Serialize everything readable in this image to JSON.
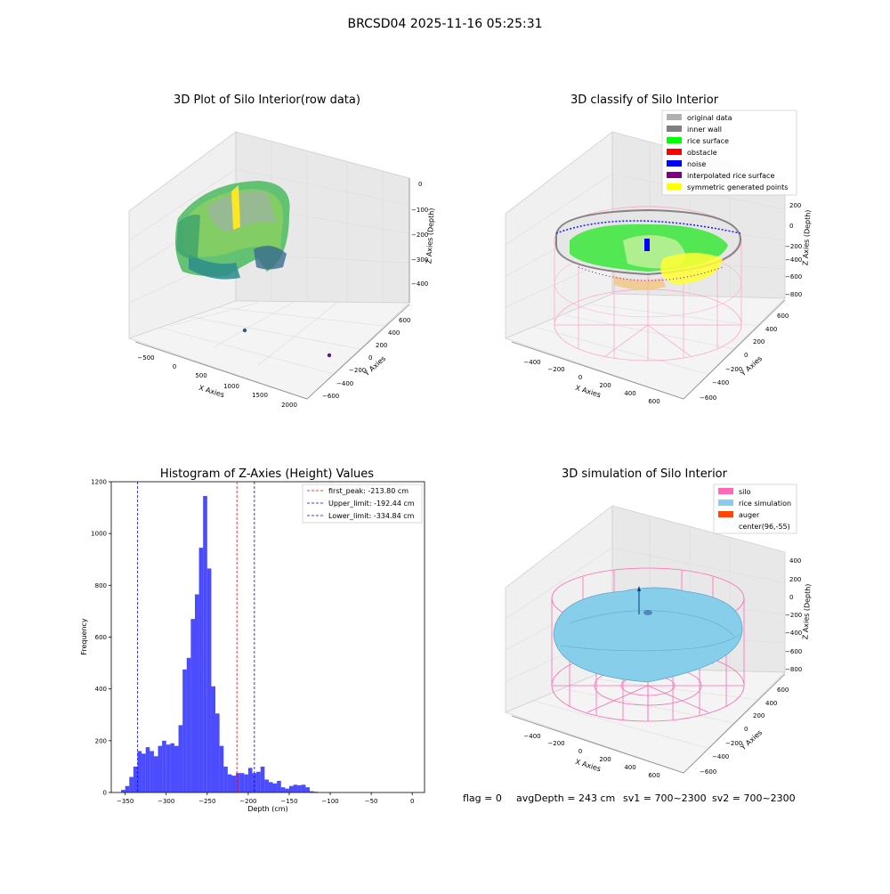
{
  "figure_title": "BRCSD04 2025-11-16 05:25:31",
  "panels": {
    "raw": {
      "title": "3D Plot of Silo Interior(row data)",
      "xlabel": "X Axies",
      "ylabel": "Y Axies",
      "zlabel": "Z Axies (Depth)",
      "xticks": [
        "−500",
        "0",
        "500",
        "1000",
        "1500",
        "2000"
      ],
      "yticks": [
        "600",
        "400",
        "200",
        "0",
        "−200",
        "−400",
        "−600"
      ],
      "zticks": [
        "0",
        "−100",
        "−200",
        "−300",
        "−400"
      ]
    },
    "classify": {
      "title": "3D classify of Silo Interior",
      "xlabel": "X Axies",
      "ylabel": "Y Axies",
      "zlabel": "Z Axies (Depth)",
      "xticks": [
        "−400",
        "−200",
        "0",
        "200",
        "400",
        "600"
      ],
      "yticks": [
        "600",
        "400",
        "200",
        "0",
        "−200",
        "−400",
        "−600"
      ],
      "zticks": [
        "200",
        "0",
        "−200",
        "−400",
        "−600",
        "−800"
      ],
      "legend": [
        {
          "label": "original data",
          "color": "#b0b0b0"
        },
        {
          "label": "inner wall",
          "color": "#808080"
        },
        {
          "label": "rice surface",
          "color": "#00ff00"
        },
        {
          "label": "obstacle",
          "color": "#ff0000"
        },
        {
          "label": "noise",
          "color": "#0000ff"
        },
        {
          "label": "interpolated rice surface",
          "color": "#800080"
        },
        {
          "label": "symmetric generated points",
          "color": "#ffff00"
        }
      ]
    },
    "simulation": {
      "title": "3D simulation of Silo Interior",
      "xlabel": "X Axies",
      "ylabel": "Y Axies",
      "zlabel": "Z Axies (Depth)",
      "xticks": [
        "−400",
        "−200",
        "0",
        "200",
        "400",
        "600"
      ],
      "yticks": [
        "600",
        "400",
        "200",
        "0",
        "−200",
        "−400",
        "−600"
      ],
      "zticks": [
        "400",
        "200",
        "0",
        "−200",
        "−400",
        "−600",
        "−800"
      ],
      "legend": [
        {
          "label": "silo",
          "color": "#ff69b4"
        },
        {
          "label": "rice simulation",
          "color": "#87ceeb"
        },
        {
          "label": "auger",
          "color": "#ff4500"
        },
        {
          "label": "center(96,-55)",
          "color": "#ffffff"
        }
      ]
    }
  },
  "status": {
    "flag": "flag = 0",
    "avg": "avgDepth = 243 cm",
    "sv1": "sv1 = 700~2300",
    "sv2": "sv2 = 700~2300"
  },
  "chart_data": {
    "type": "bar",
    "title": "Histogram of Z-Axies (Height) Values",
    "xlabel": "Depth (cm)",
    "ylabel": "Frequency",
    "xlim": [
      -367,
      15
    ],
    "ylim": [
      0,
      1200
    ],
    "xticks": [
      -350,
      -300,
      -250,
      -200,
      -150,
      -100,
      -50,
      0
    ],
    "yticks": [
      0,
      200,
      400,
      600,
      800,
      1000,
      1200
    ],
    "bar_color": "#0000ff",
    "bin_width": 5,
    "bins_start": [
      -355,
      -350,
      -345,
      -340,
      -335,
      -330,
      -325,
      -320,
      -315,
      -310,
      -305,
      -300,
      -295,
      -290,
      -285,
      -280,
      -275,
      -270,
      -265,
      -260,
      -255,
      -250,
      -245,
      -240,
      -235,
      -230,
      -225,
      -220,
      -215,
      -210,
      -205,
      -200,
      -195,
      -190,
      -185,
      -180,
      -175,
      -170,
      -165,
      -160,
      -155,
      -150,
      -145,
      -140,
      -135,
      -130,
      -125,
      -120,
      -115,
      -110,
      -105,
      -100,
      -95,
      -90,
      -85,
      -80,
      -75,
      -70,
      -65,
      -60,
      -55,
      -50,
      -45,
      -40,
      -35,
      -30,
      -25,
      -20,
      -15,
      -10,
      -5,
      0
    ],
    "counts": [
      10,
      25,
      60,
      100,
      160,
      150,
      175,
      160,
      140,
      180,
      200,
      185,
      190,
      180,
      260,
      475,
      520,
      670,
      765,
      945,
      1145,
      865,
      410,
      305,
      180,
      100,
      70,
      65,
      75,
      75,
      70,
      95,
      75,
      80,
      100,
      50,
      40,
      35,
      45,
      20,
      15,
      25,
      30,
      28,
      30,
      20,
      5,
      3,
      0,
      0,
      0,
      0,
      0,
      0,
      0,
      0,
      0,
      0,
      0,
      0,
      0,
      0,
      0,
      0,
      0,
      0,
      0,
      0,
      0,
      0,
      0,
      0
    ],
    "vlines": [
      {
        "label": "first_peak: -213.80 cm",
        "x": -213.8,
        "color": "#ff0000"
      },
      {
        "label": "Upper_limit: -192.44 cm",
        "x": -192.44,
        "color": "#0000ff"
      },
      {
        "label": "Lower_limit: -334.84 cm",
        "x": -334.84,
        "color": "#0000ff"
      }
    ]
  }
}
